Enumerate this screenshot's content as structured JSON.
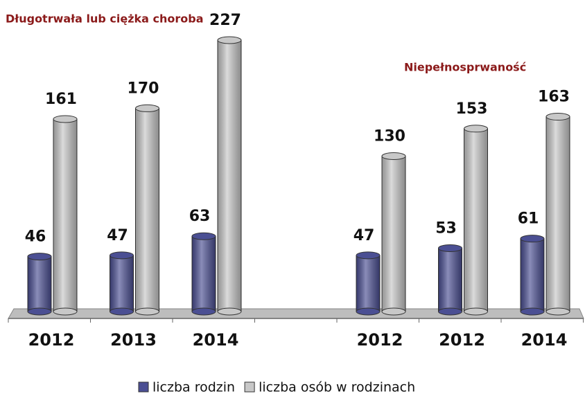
{
  "chart_data": {
    "type": "cylinder-bar",
    "annotations": [
      "Długotrwała lub ciężka choroba",
      "Niepełnosprwaność"
    ],
    "categories": [
      "2012",
      "2013",
      "2014",
      null,
      "2012",
      "2012",
      "2014"
    ],
    "series": [
      {
        "name": "liczba rodzin",
        "color": "#4b4f93",
        "values": [
          46,
          47,
          63,
          null,
          47,
          53,
          61
        ]
      },
      {
        "name": "liczba osób w rodzinach",
        "color": "#c8c8c8",
        "values": [
          161,
          170,
          227,
          null,
          130,
          153,
          163
        ]
      }
    ]
  }
}
